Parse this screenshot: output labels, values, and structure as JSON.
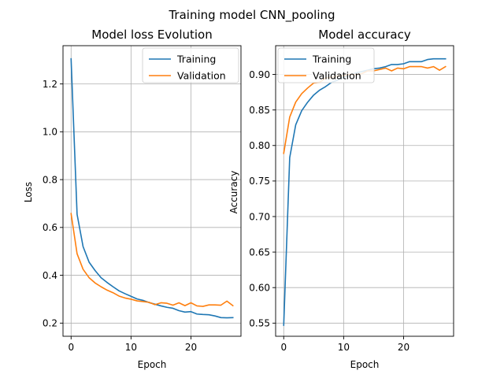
{
  "suptitle": "Training model CNN_pooling",
  "chart_data": [
    {
      "type": "line",
      "title": "Model loss Evolution",
      "xlabel": "Epoch",
      "ylabel": "Loss",
      "xlim": [
        -1.35,
        28.35
      ],
      "ylim": [
        0.145,
        1.36
      ],
      "xticks": [
        0,
        10,
        20
      ],
      "xtick_labels": [
        "0",
        "10",
        "20"
      ],
      "yticks": [
        0.2,
        0.4,
        0.6,
        0.8,
        1.0,
        1.2
      ],
      "ytick_labels": [
        "0.2",
        "0.4",
        "0.6",
        "0.8",
        "1.0",
        "1.2"
      ],
      "grid": true,
      "legend": "upper right",
      "x": [
        0,
        1,
        2,
        3,
        4,
        5,
        6,
        7,
        8,
        9,
        10,
        11,
        12,
        13,
        14,
        15,
        16,
        17,
        18,
        19,
        20,
        21,
        22,
        23,
        24,
        25,
        26,
        27
      ],
      "series": [
        {
          "name": "Training",
          "color": "#1f77b4",
          "values": [
            1.305,
            0.655,
            0.52,
            0.455,
            0.42,
            0.39,
            0.37,
            0.352,
            0.335,
            0.323,
            0.312,
            0.301,
            0.295,
            0.286,
            0.279,
            0.272,
            0.266,
            0.262,
            0.252,
            0.246,
            0.248,
            0.238,
            0.236,
            0.235,
            0.23,
            0.223,
            0.222,
            0.223
          ]
        },
        {
          "name": "Validation",
          "color": "#ff7f0e",
          "values": [
            0.658,
            0.49,
            0.425,
            0.39,
            0.368,
            0.352,
            0.338,
            0.327,
            0.313,
            0.305,
            0.3,
            0.293,
            0.29,
            0.287,
            0.277,
            0.285,
            0.283,
            0.275,
            0.285,
            0.273,
            0.285,
            0.272,
            0.27,
            0.276,
            0.276,
            0.275,
            0.292,
            0.273
          ]
        }
      ]
    },
    {
      "type": "line",
      "title": "Model accuracy",
      "xlabel": "Epoch",
      "ylabel": "Accuracy",
      "xlim": [
        -1.35,
        28.35
      ],
      "ylim": [
        0.5315,
        0.9405
      ],
      "xticks": [
        0,
        10,
        20
      ],
      "xtick_labels": [
        "0",
        "10",
        "20"
      ],
      "yticks": [
        0.55,
        0.6,
        0.65,
        0.7,
        0.75,
        0.8,
        0.85,
        0.9
      ],
      "ytick_labels": [
        "0.55",
        "0.60",
        "0.65",
        "0.70",
        "0.75",
        "0.80",
        "0.85",
        "0.90"
      ],
      "grid": true,
      "legend": "upper left",
      "x": [
        0,
        1,
        2,
        3,
        4,
        5,
        6,
        7,
        8,
        9,
        10,
        11,
        12,
        13,
        14,
        15,
        16,
        17,
        18,
        19,
        20,
        21,
        22,
        23,
        24,
        25,
        26,
        27
      ],
      "series": [
        {
          "name": "Training",
          "color": "#1f77b4",
          "values": [
            0.547,
            0.783,
            0.829,
            0.849,
            0.861,
            0.871,
            0.878,
            0.883,
            0.889,
            0.892,
            0.896,
            0.899,
            0.902,
            0.904,
            0.906,
            0.908,
            0.909,
            0.911,
            0.914,
            0.914,
            0.915,
            0.918,
            0.918,
            0.918,
            0.921,
            0.922,
            0.922,
            0.922
          ]
        },
        {
          "name": "Validation",
          "color": "#ff7f0e",
          "values": [
            0.789,
            0.84,
            0.861,
            0.873,
            0.881,
            0.888,
            0.889,
            0.895,
            0.896,
            0.898,
            0.898,
            0.9,
            0.9,
            0.901,
            0.905,
            0.905,
            0.907,
            0.909,
            0.905,
            0.909,
            0.908,
            0.911,
            0.911,
            0.911,
            0.909,
            0.911,
            0.906,
            0.911
          ]
        }
      ]
    }
  ]
}
